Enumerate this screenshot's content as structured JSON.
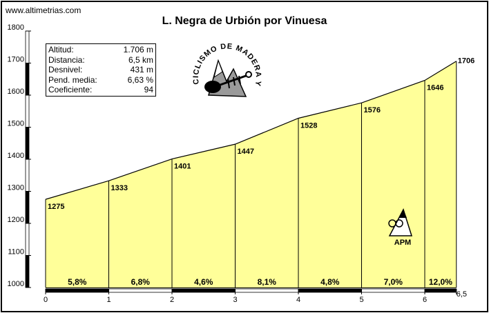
{
  "header": {
    "site": "www.altimetrias.com"
  },
  "chart_data": {
    "type": "area",
    "title": "L. Negra de Urbión por Vinuesa",
    "x": [
      0,
      1,
      2,
      3,
      4,
      5,
      6,
      6.5
    ],
    "y": [
      1275,
      1333,
      1401,
      1447,
      1528,
      1576,
      1646,
      1706
    ],
    "point_labels": [
      "1275",
      "1333",
      "1401",
      "1447",
      "1528",
      "1576",
      "1646",
      "1706"
    ],
    "x_ticks": [
      "0",
      "1",
      "2",
      "3",
      "4",
      "5",
      "6",
      "6,5"
    ],
    "y_ticks": [
      "1000",
      "1100",
      "1200",
      "1300",
      "1400",
      "1500",
      "1600",
      "1700",
      "1800"
    ],
    "ylim": [
      1000,
      1800
    ],
    "xlim": [
      0,
      6.5
    ],
    "segment_gradients": [
      "5,8%",
      "6,8%",
      "4,6%",
      "8,1%",
      "4,8%",
      "7,0%",
      "12,0%"
    ],
    "fill_color": "#ffff99",
    "line_color": "#000000"
  },
  "stats": [
    {
      "label": "Altitud:",
      "value": "1.706 m"
    },
    {
      "label": "Distancia:",
      "value": "6,5 km"
    },
    {
      "label": "Desnivel:",
      "value": "431 m"
    },
    {
      "label": "Pend. media:",
      "value": "6,63 %"
    },
    {
      "label": "Coeficiente:",
      "value": "94"
    }
  ],
  "logo": {
    "text": "CICLISMO DE MADERA Y VIENTO"
  },
  "apm": {
    "text": "APM"
  }
}
